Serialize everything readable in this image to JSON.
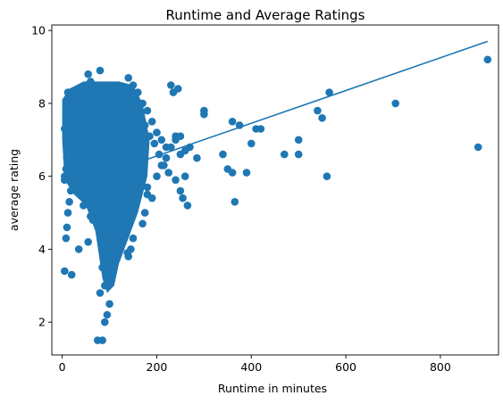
{
  "chart_data": {
    "type": "scatter",
    "title": "Runtime and Average Ratings",
    "xlabel": "Runtime in minutes",
    "ylabel": "average rating",
    "xlim": [
      -22,
      923
    ],
    "ylim": [
      1.1,
      10.15
    ],
    "xticks": [
      0,
      200,
      400,
      600,
      800
    ],
    "yticks": [
      2,
      4,
      6,
      8,
      10
    ],
    "grid": false,
    "legend": "none",
    "point_color": "#1f77b4",
    "trendline": {
      "x": [
        65,
        900
      ],
      "y": [
        5.95,
        9.7
      ]
    },
    "points": {
      "x": [
        75,
        85,
        90,
        95,
        100,
        80,
        90,
        105,
        85,
        95,
        100,
        110,
        90,
        95,
        80,
        85,
        100,
        105,
        95,
        110,
        5,
        8,
        10,
        12,
        15,
        18,
        20,
        25,
        30,
        35,
        5,
        8,
        10,
        12,
        15,
        20,
        25,
        30,
        5,
        8,
        10,
        15,
        20,
        25,
        30,
        40,
        45,
        50,
        55,
        60,
        5,
        10,
        15,
        22,
        28,
        35,
        40,
        50,
        60,
        70,
        20,
        35,
        55,
        65,
        75,
        80,
        40,
        60,
        25,
        45,
        130,
        140,
        150,
        160,
        170,
        180,
        190,
        200,
        210,
        220,
        130,
        145,
        155,
        165,
        175,
        185,
        195,
        205,
        215,
        225,
        150,
        160,
        170,
        180,
        190,
        200,
        210,
        220,
        230,
        240,
        250,
        260,
        270,
        240,
        250,
        255,
        265,
        230,
        235,
        245,
        260,
        250,
        240,
        180,
        175,
        150,
        145,
        140,
        138,
        170,
        285,
        300,
        300,
        340,
        350,
        360,
        365,
        360,
        375,
        390,
        400,
        410,
        420,
        470,
        500,
        500,
        540,
        550,
        565,
        560,
        705,
        880,
        900
      ],
      "y": [
        1.5,
        1.5,
        2.0,
        2.2,
        2.5,
        2.8,
        3.0,
        3.3,
        3.5,
        3.8,
        4.0,
        4.2,
        4.5,
        4.8,
        5.0,
        5.3,
        5.5,
        5.8,
        6.0,
        6.3,
        3.4,
        4.3,
        4.6,
        5.0,
        5.3,
        5.6,
        6.0,
        6.3,
        6.6,
        7.0,
        7.3,
        7.6,
        8.0,
        8.3,
        7.8,
        7.5,
        7.2,
        6.8,
        5.9,
        6.2,
        6.5,
        6.8,
        7.1,
        7.4,
        7.7,
        8.0,
        8.3,
        8.5,
        8.8,
        8.6,
        6.0,
        6.5,
        7.0,
        7.5,
        7.9,
        8.4,
        8.1,
        7.6,
        7.2,
        6.8,
        3.3,
        4.0,
        4.2,
        4.8,
        5.1,
        8.9,
        5.5,
        4.9,
        5.8,
        5.2,
        8.4,
        8.7,
        8.5,
        8.3,
        8.0,
        7.8,
        7.5,
        7.2,
        7.0,
        6.8,
        7.7,
        8.1,
        7.9,
        7.6,
        7.4,
        7.1,
        6.9,
        6.6,
        6.3,
        6.1,
        6.4,
        6.2,
        5.9,
        5.7,
        5.4,
        6.0,
        6.3,
        6.5,
        6.8,
        7.0,
        7.1,
        6.7,
        6.8,
        5.9,
        5.6,
        5.4,
        5.2,
        8.5,
        8.3,
        8.4,
        6.0,
        6.6,
        7.1,
        5.5,
        5.0,
        4.3,
        4.0,
        3.8,
        3.9,
        4.7,
        6.5,
        7.8,
        7.7,
        6.6,
        6.2,
        7.5,
        5.3,
        6.1,
        7.4,
        6.1,
        6.9,
        7.3,
        7.3,
        6.6,
        7.0,
        6.6,
        7.8,
        7.6,
        8.3,
        6.0,
        8.0,
        6.8,
        9.2
      ]
    }
  }
}
